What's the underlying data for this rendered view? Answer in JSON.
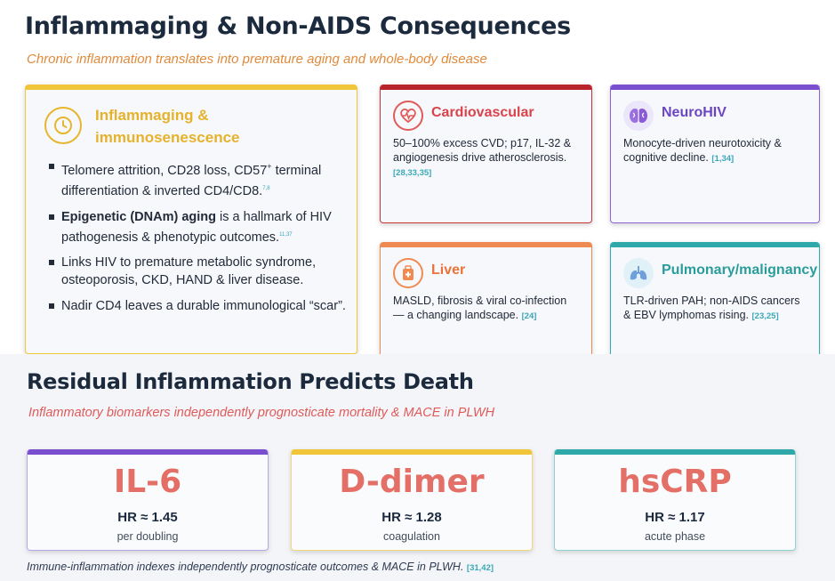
{
  "section1": {
    "title": "Inflammaging & Non-AIDS Consequences",
    "subtitle": "Chronic inflammation translates into premature aging and whole-body disease",
    "big_card": {
      "icon": "clock-icon",
      "heading_line1": "Inflammaging &",
      "heading_line2": "immunosenescence",
      "bullets": [
        {
          "text": "Telomere attrition, CD28 loss, CD57",
          "sup": "+",
          "text2": " terminal differentiation & inverted CD4/CD8.",
          "ref": "7,8"
        },
        {
          "bold": "Epigenetic (DNAm) aging",
          "text": " is a hallmark of HIV pathogenesis & phenotypic outcomes.",
          "ref": "11,37"
        },
        {
          "text": "Links HIV to premature metabolic syndrome, osteoporosis, CKD, HAND & liver disease."
        },
        {
          "text": "Nadir CD4 leaves a durable immunological “scar”."
        }
      ]
    },
    "cards": {
      "cardiovascular": {
        "icon": "heart-pulse-icon",
        "heading": "Cardiovascular",
        "body": "50–100% excess CVD; p17, IL-32 & angiogenesis drive atherosclerosis.",
        "ref": "[28,33,35]"
      },
      "neurohiv": {
        "icon": "brain-icon",
        "heading": "NeuroHIV",
        "body": "Monocyte-driven neurotoxicity & cognitive decline.",
        "ref": "[1,34]"
      },
      "liver": {
        "icon": "medical-kit-icon",
        "heading": "Liver",
        "body": "MASLD, fibrosis & viral co-infection — a changing landscape.",
        "ref": "[24]"
      },
      "pulmonary": {
        "icon": "lungs-icon",
        "heading": "Pulmonary/malignancy",
        "body": "TLR-driven PAH; non-AIDS cancers & EBV lymphomas rising.",
        "ref": "[23,25]"
      }
    }
  },
  "section2": {
    "title": "Residual Inflammation Predicts Death",
    "subtitle": "Inflammatory biomarkers independently prognosticate mortality & MACE in PLWH",
    "stats": [
      {
        "name": "IL-6",
        "hr": "HR ≈ 1.45",
        "sub": "per doubling"
      },
      {
        "name": "D-dimer",
        "hr": "HR ≈ 1.28",
        "sub": "coagulation"
      },
      {
        "name": "hsCRP",
        "hr": "HR ≈ 1.17",
        "sub": "acute phase"
      }
    ],
    "footnote": "Immune-inflammation indexes independently prognosticate outcomes & MACE in PLWH.",
    "footnote_ref": "[31,42]"
  },
  "colors": {
    "yellow": "#f0c53a",
    "red": "#b8232c",
    "purple": "#7a4fcf",
    "orange": "#ef8b52",
    "teal": "#2ea8a8",
    "stat_red": "#e36f66",
    "subtitle_orange": "#e08a3c",
    "subtitle_red": "#e05a5a"
  }
}
